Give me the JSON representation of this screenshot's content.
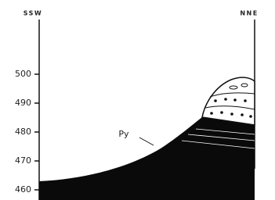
{
  "labels": {
    "left": "SSW",
    "right": "NNE"
  },
  "elevation_ticks": [
    500,
    490,
    480,
    470,
    460
  ],
  "annotation": "Py"
}
